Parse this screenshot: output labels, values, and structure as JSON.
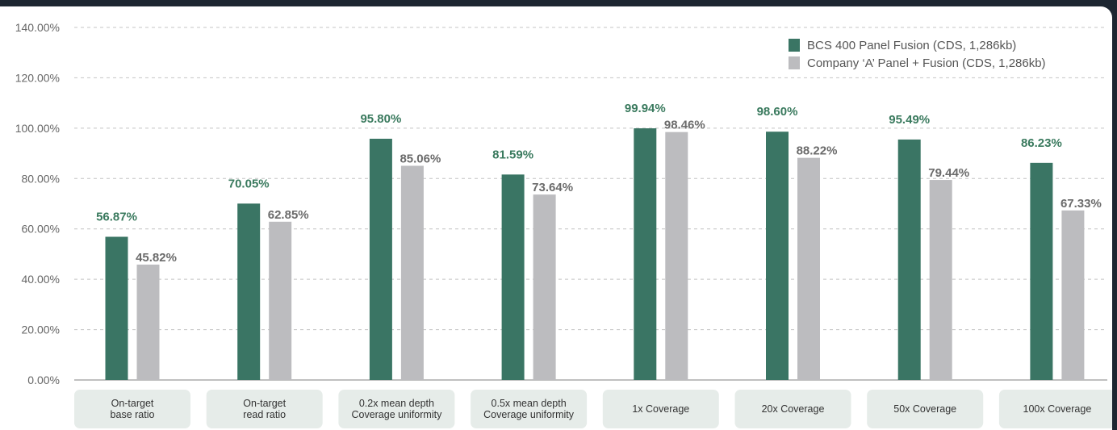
{
  "chart_data": {
    "type": "bar",
    "ylim": [
      0,
      140
    ],
    "yticks": [
      0,
      20,
      40,
      60,
      80,
      100,
      120,
      140
    ],
    "ytick_labels": [
      "0.00%",
      "20.00%",
      "40.00%",
      "60.00%",
      "80.00%",
      "100.00%",
      "120.00%",
      "140.00%"
    ],
    "grid": true,
    "legend_position": "top-right",
    "categories": [
      [
        "On-target",
        "base ratio"
      ],
      [
        "On-target",
        "read ratio"
      ],
      [
        "0.2x mean depth",
        "Coverage uniformity"
      ],
      [
        "0.5x mean depth",
        "Coverage uniformity"
      ],
      [
        "1x Coverage"
      ],
      [
        "20x Coverage"
      ],
      [
        "50x Coverage"
      ],
      [
        "100x Coverage"
      ]
    ],
    "series": [
      {
        "name": "BCS 400 Panel Fusion (CDS, 1,286kb)",
        "color": "#3a7564",
        "label_color": "#3a7a5e",
        "values": [
          56.87,
          70.05,
          95.8,
          81.59,
          99.94,
          98.6,
          95.49,
          86.23
        ],
        "labels": [
          "56.87%",
          "70.05%",
          "95.80%",
          "81.59%",
          "99.94%",
          "98.60%",
          "95.49%",
          "86.23%"
        ]
      },
      {
        "name": "Company ‘A’ Panel + Fusion (CDS, 1,286kb)",
        "color": "#bcbcbf",
        "label_color": "#6b6b6b",
        "values": [
          45.82,
          62.85,
          85.06,
          73.64,
          98.46,
          88.22,
          79.44,
          67.33
        ],
        "labels": [
          "45.82%",
          "62.85%",
          "85.06%",
          "73.64%",
          "98.46%",
          "88.22%",
          "79.44%",
          "67.33%"
        ]
      }
    ]
  }
}
